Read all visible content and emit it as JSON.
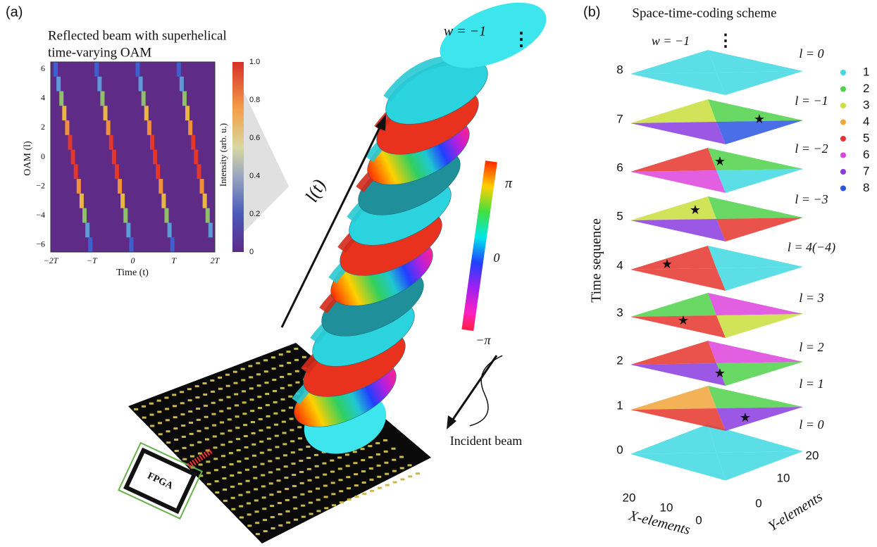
{
  "panel_a": {
    "label": "(a)",
    "title_lines": [
      "Reflected beam with superhelical",
      "time-varying OAM"
    ],
    "heatmap": {
      "y_label": "OAM (l)",
      "y_ticks": [
        "6",
        "4",
        "2",
        "0",
        "−2",
        "−4",
        "−6"
      ],
      "x_ticks": [
        "−2T",
        "−T",
        "0",
        "T",
        "2T"
      ],
      "x_label": "Time (t)",
      "colorbar_ticks": [
        "1.0",
        "0.8",
        "0.6",
        "0.4",
        "0.2",
        "0"
      ],
      "colorbar_label": "Intensity (arb. u.)"
    },
    "winding_label": "w = −1",
    "ellipsis": "⋮",
    "axis_label": "l(t)",
    "phase_ticks": [
      "π",
      "0",
      "−π"
    ],
    "incident_label": "Incident beam",
    "fpga_label": "FPGA"
  },
  "panel_b": {
    "label": "(b)",
    "title": "Space-time-coding scheme",
    "winding_label": "w = −1",
    "ellipsis": "⋮",
    "layers": [
      {
        "time": "0",
        "l": "l = 0"
      },
      {
        "time": "1",
        "l": "l = 1"
      },
      {
        "time": "2",
        "l": "l = 2"
      },
      {
        "time": "3",
        "l": "l = 3"
      },
      {
        "time": "4",
        "l": "l = 4(−4)"
      },
      {
        "time": "5",
        "l": "l = −3"
      },
      {
        "time": "6",
        "l": "l = −2"
      },
      {
        "time": "7",
        "l": "l = −1"
      },
      {
        "time": "8",
        "l": "l = 0"
      }
    ],
    "y_label": "Time sequence",
    "legend": [
      {
        "label": "1",
        "color": "#3fd8e2"
      },
      {
        "label": "2",
        "color": "#4fd14a"
      },
      {
        "label": "3",
        "color": "#c9df3c"
      },
      {
        "label": "4",
        "color": "#f1a53a"
      },
      {
        "label": "5",
        "color": "#e5352d"
      },
      {
        "label": "6",
        "color": "#dd43dd"
      },
      {
        "label": "7",
        "color": "#8a3be0"
      },
      {
        "label": "8",
        "color": "#2a55e2"
      }
    ],
    "x_label": "X-elements",
    "x_ticks": [
      "20",
      "10",
      "0"
    ],
    "y_axis_label": "Y-elements",
    "y_ticks": [
      "0",
      "10",
      "20"
    ]
  }
}
